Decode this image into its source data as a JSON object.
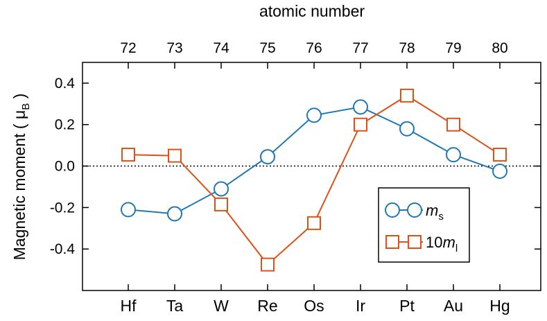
{
  "chart_data": {
    "type": "line",
    "top_axis_label": "atomic number",
    "top_categories": [
      "72",
      "73",
      "74",
      "75",
      "76",
      "77",
      "78",
      "79",
      "80"
    ],
    "categories": [
      "Hf",
      "Ta",
      "W",
      "Re",
      "Os",
      "Ir",
      "Pt",
      "Au",
      "Hg"
    ],
    "ylabel": "Magnetic moment ( μ",
    "ylabel_sub": "B",
    "ylabel_close": " )",
    "ylim": [
      -0.6,
      0.5
    ],
    "yticks": [
      "-0.4",
      "-0.2",
      "0.0",
      "0.2",
      "0.4"
    ],
    "reference_line": {
      "y": 0.0,
      "style": "dotted"
    },
    "grid": false,
    "legend_placement": "bottom-right",
    "series": [
      {
        "name": "m",
        "name_sub": "s",
        "name_prefix": "",
        "marker": "circle",
        "color": "#1f77b4",
        "values": [
          -0.21,
          -0.23,
          -0.11,
          0.045,
          0.245,
          0.285,
          0.18,
          0.055,
          -0.025
        ]
      },
      {
        "name": "m",
        "name_sub": "l",
        "name_prefix": "10",
        "marker": "square",
        "color": "#d95319",
        "values": [
          0.055,
          0.05,
          -0.185,
          -0.475,
          -0.275,
          0.2,
          0.34,
          0.2,
          0.055
        ]
      }
    ]
  }
}
